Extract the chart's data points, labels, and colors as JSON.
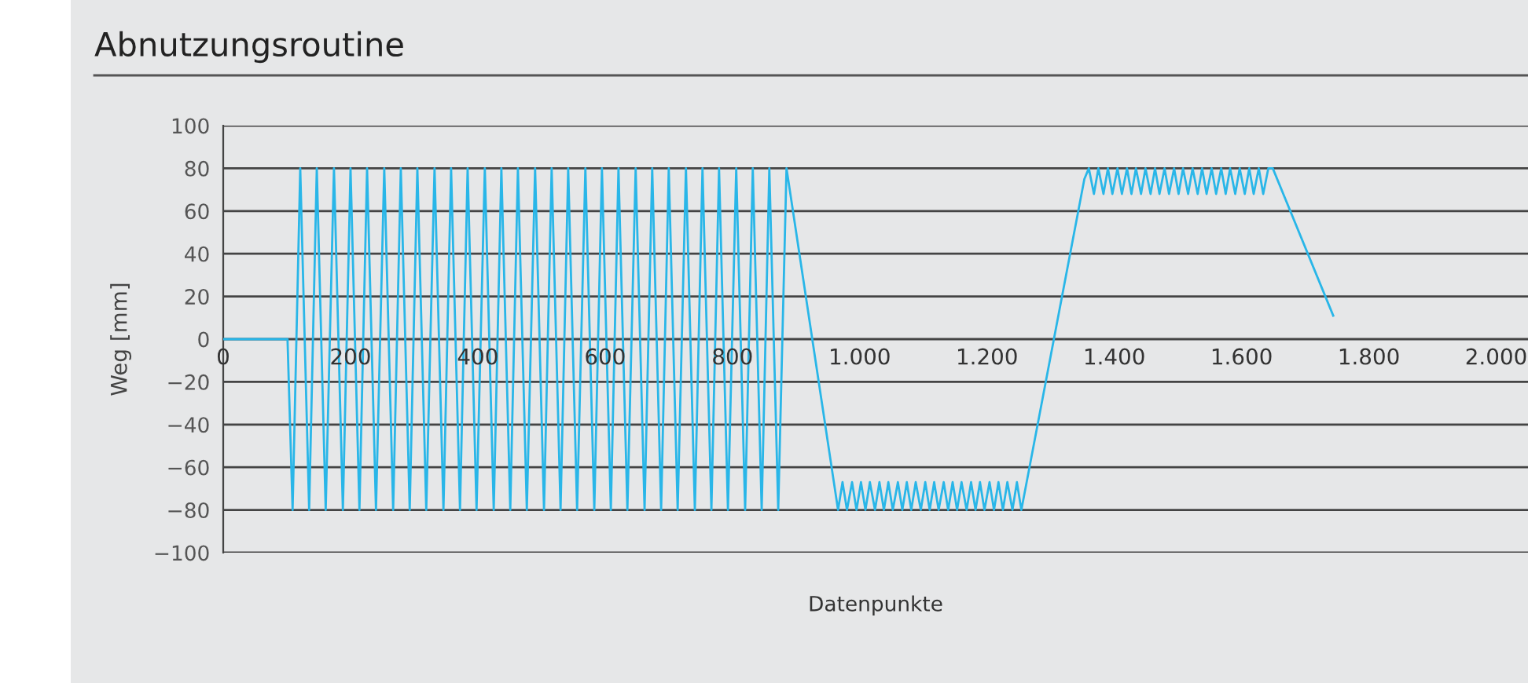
{
  "chart_data": {
    "type": "line",
    "title": "Abnutzungsroutine",
    "xlabel": "Datenpunkte",
    "ylabel": "Weg [mm]",
    "series": [
      {
        "color": "#29b6e8",
        "x": [
          0,
          101,
          109,
          121,
          135,
          147,
          161,
          174,
          188,
          200,
          214,
          226,
          240,
          253,
          267,
          279,
          293,
          305,
          319,
          332,
          346,
          358,
          372,
          384,
          398,
          411,
          425,
          437,
          451,
          463,
          477,
          490,
          504,
          516,
          530,
          542,
          556,
          569,
          583,
          595,
          609,
          621,
          635,
          648,
          662,
          674,
          688,
          700,
          714,
          727,
          741,
          753,
          767,
          779,
          793,
          806,
          820,
          832,
          846,
          858,
          872,
          885,
          966,
          973,
          980,
          988,
          995,
          1002,
          1009,
          1016,
          1024,
          1031,
          1038,
          1045,
          1052,
          1060,
          1067,
          1074,
          1081,
          1088,
          1096,
          1103,
          1110,
          1117,
          1124,
          1132,
          1139,
          1146,
          1153,
          1160,
          1168,
          1175,
          1182,
          1189,
          1196,
          1204,
          1211,
          1218,
          1225,
          1232,
          1240,
          1247,
          1254,
          1353,
          1360,
          1368,
          1375,
          1383,
          1390,
          1397,
          1405,
          1412,
          1420,
          1427,
          1434,
          1442,
          1449,
          1457,
          1464,
          1471,
          1479,
          1486,
          1494,
          1501,
          1508,
          1516,
          1523,
          1531,
          1538,
          1545,
          1553,
          1560,
          1568,
          1575,
          1582,
          1590,
          1597,
          1605,
          1612,
          1619,
          1627,
          1634,
          1642,
          1649,
          1744
        ],
        "values": [
          0,
          0,
          -80,
          80,
          -80,
          80,
          -80,
          80,
          -80,
          80,
          -80,
          80,
          -80,
          80,
          -80,
          80,
          -80,
          80,
          -80,
          80,
          -80,
          80,
          -80,
          80,
          -80,
          80,
          -80,
          80,
          -80,
          80,
          -80,
          80,
          -80,
          80,
          -80,
          80,
          -80,
          80,
          -80,
          80,
          -80,
          80,
          -80,
          80,
          -80,
          80,
          -80,
          80,
          -80,
          80,
          -80,
          80,
          -80,
          80,
          -80,
          80,
          -80,
          80,
          -80,
          80,
          -80,
          80,
          -80,
          -67,
          -80,
          -67,
          -80,
          -67,
          -80,
          -67,
          -80,
          -67,
          -80,
          -67,
          -80,
          -67,
          -80,
          -67,
          -80,
          -67,
          -80,
          -67,
          -80,
          -67,
          -80,
          -67,
          -80,
          -67,
          -80,
          -67,
          -80,
          -67,
          -80,
          -67,
          -80,
          -67,
          -80,
          -67,
          -80,
          -67,
          -80,
          -67,
          -80,
          75,
          80,
          68,
          80,
          68,
          80,
          68,
          80,
          68,
          80,
          68,
          80,
          68,
          80,
          68,
          80,
          68,
          80,
          68,
          80,
          68,
          80,
          68,
          80,
          68,
          80,
          68,
          80,
          68,
          80,
          68,
          80,
          68,
          80,
          68,
          80,
          68,
          80,
          68,
          80,
          80,
          11
        ]
      }
    ],
    "xlim": [
      0,
      2050
    ],
    "ylim": [
      -100,
      100
    ],
    "xticks": [
      0,
      200,
      400,
      600,
      800,
      {
        "value": 1000,
        "label": "1.000"
      },
      {
        "value": 1200,
        "label": "1.200"
      },
      {
        "value": 1400,
        "label": "1.400"
      },
      {
        "value": 1600,
        "label": "1.600"
      },
      {
        "value": 1800,
        "label": "1.800"
      },
      {
        "value": 2000,
        "label": "2.000"
      }
    ],
    "yticks": [
      100,
      80,
      60,
      40,
      20,
      0,
      {
        "value": -20,
        "label": "−20"
      },
      {
        "value": -40,
        "label": "−40"
      },
      {
        "value": -60,
        "label": "−60"
      },
      {
        "value": -80,
        "label": "−80"
      },
      {
        "value": -100,
        "label": "−100"
      }
    ],
    "grid": "y",
    "marker": "none",
    "line_style": "solid"
  }
}
